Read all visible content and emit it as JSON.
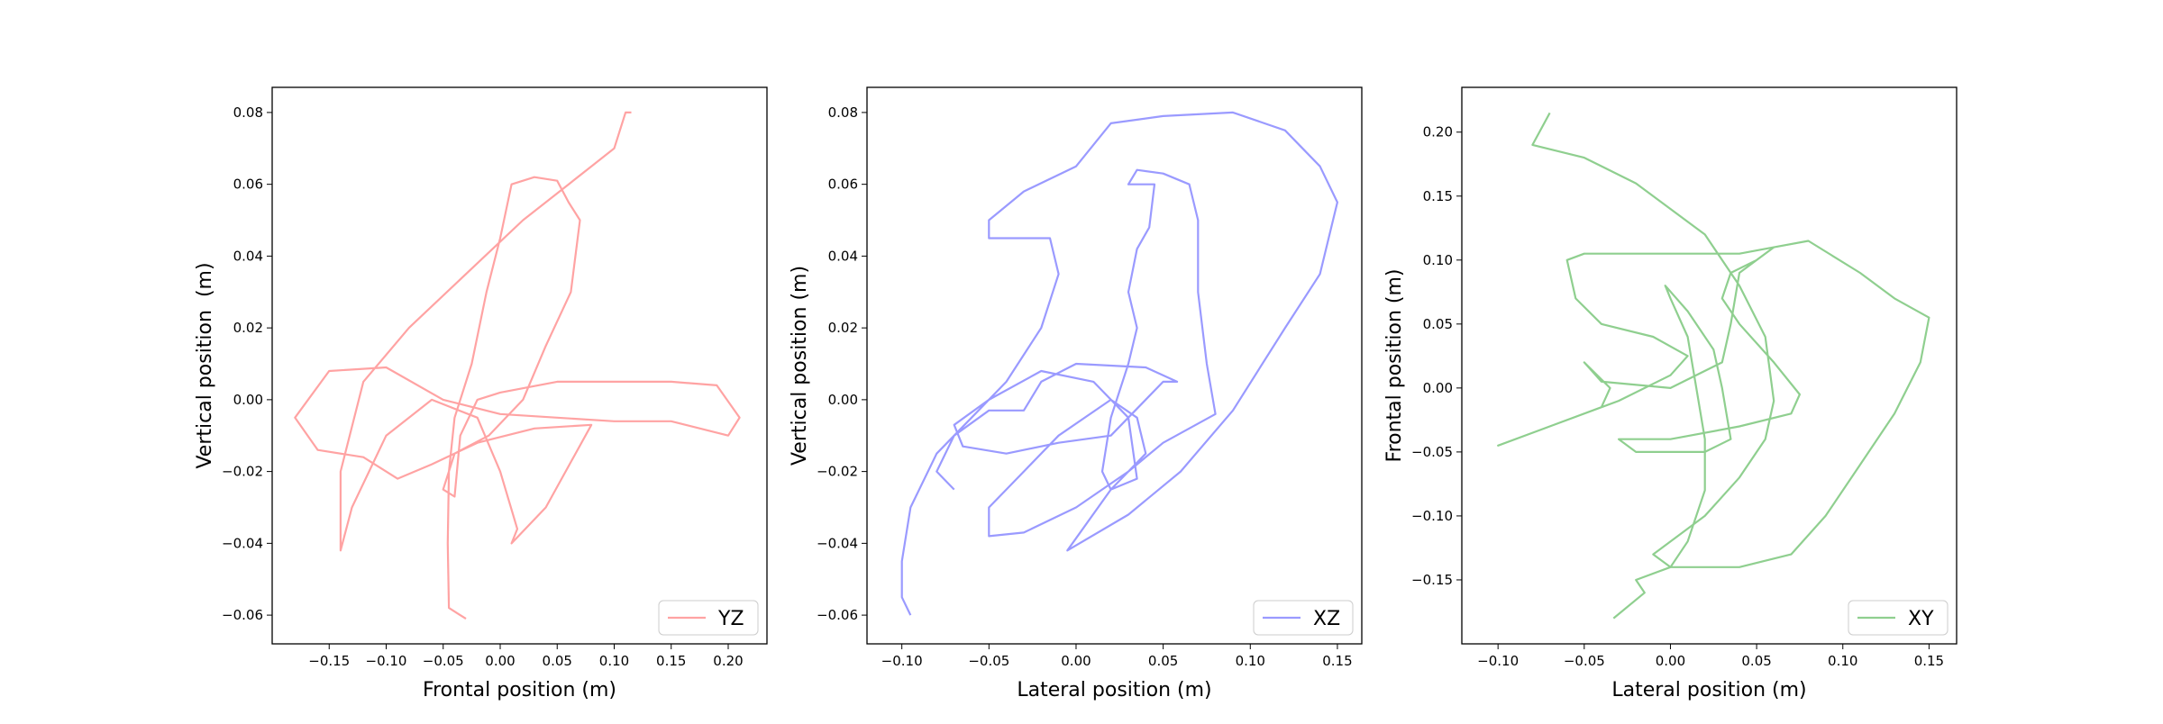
{
  "chart_data": [
    {
      "type": "line",
      "x_label": "Frontal position (m)",
      "y_label": "Vertical position  (m)",
      "xlim": [
        -0.2,
        0.234
      ],
      "ylim": [
        -0.068,
        0.087
      ],
      "xticks": [
        {
          "value": -0.15,
          "label": "−0.15"
        },
        {
          "value": -0.1,
          "label": "−0.10"
        },
        {
          "value": -0.05,
          "label": "−0.05"
        },
        {
          "value": 0,
          "label": "0.00"
        },
        0.05,
        {
          "value": 0.1,
          "label": "0.10"
        },
        0.15,
        {
          "value": 0.2,
          "label": "0.20"
        }
      ],
      "yticks": [
        {
          "value": -0.06,
          "label": "−0.06"
        },
        {
          "value": -0.04,
          "label": "−0.04"
        },
        {
          "value": -0.02,
          "label": "−0.02"
        },
        {
          "value": 0,
          "label": "0.00"
        },
        0.02,
        0.04,
        0.06,
        0.08
      ],
      "legend": "lower right",
      "series": [
        {
          "name": "YZ",
          "color": "#ffa3a3",
          "x": [
            -0.03,
            -0.045,
            -0.046,
            -0.045,
            -0.04,
            -0.025,
            -0.012,
            0.0,
            0.01,
            0.03,
            0.05,
            0.06,
            0.07,
            0.062,
            0.04,
            0.02,
            -0.01,
            -0.04,
            -0.05,
            -0.04,
            -0.035,
            -0.02,
            0.0,
            0.05,
            0.1,
            0.15,
            0.19,
            0.21,
            0.2,
            0.15,
            0.1,
            0.05,
            0.0,
            -0.05,
            -0.1,
            -0.15,
            -0.18,
            -0.16,
            -0.12,
            -0.09,
            -0.06,
            -0.02,
            0.03,
            0.08,
            0.04,
            0.01,
            0.015,
            0.0,
            -0.02,
            -0.06,
            -0.1,
            -0.13,
            -0.14,
            -0.14,
            -0.12,
            -0.08,
            -0.03,
            0.02,
            0.06,
            0.08,
            0.1,
            0.11,
            0.115
          ],
          "values": [
            -0.061,
            -0.058,
            -0.04,
            -0.02,
            -0.005,
            0.01,
            0.03,
            0.045,
            0.06,
            0.062,
            0.061,
            0.055,
            0.05,
            0.03,
            0.015,
            0.0,
            -0.01,
            -0.015,
            -0.025,
            -0.027,
            -0.01,
            0.0,
            0.002,
            0.005,
            0.005,
            0.005,
            0.004,
            -0.005,
            -0.01,
            -0.006,
            -0.006,
            -0.005,
            -0.004,
            0.0,
            0.009,
            0.008,
            -0.005,
            -0.014,
            -0.016,
            -0.022,
            -0.018,
            -0.012,
            -0.008,
            -0.007,
            -0.03,
            -0.04,
            -0.036,
            -0.02,
            -0.005,
            0.0,
            -0.01,
            -0.03,
            -0.042,
            -0.02,
            0.005,
            0.02,
            0.035,
            0.05,
            0.06,
            0.065,
            0.07,
            0.08,
            0.08
          ]
        }
      ]
    },
    {
      "type": "line",
      "x_label": "Lateral position (m)",
      "y_label": "Vertical position (m)",
      "xlim": [
        -0.12,
        0.164
      ],
      "ylim": [
        -0.068,
        0.087
      ],
      "xticks": [
        {
          "value": -0.1,
          "label": "−0.10"
        },
        {
          "value": -0.05,
          "label": "−0.05"
        },
        {
          "value": 0,
          "label": "0.00"
        },
        0.05,
        {
          "value": 0.1,
          "label": "0.10"
        },
        0.15
      ],
      "yticks": [
        {
          "value": -0.06,
          "label": "−0.06"
        },
        {
          "value": -0.04,
          "label": "−0.04"
        },
        {
          "value": -0.02,
          "label": "−0.02"
        },
        {
          "value": 0,
          "label": "0.00"
        },
        0.02,
        0.04,
        0.06,
        0.08
      ],
      "legend": "lower right",
      "series": [
        {
          "name": "XZ",
          "color": "#9a9aff",
          "x": [
            -0.095,
            -0.1,
            -0.1,
            -0.095,
            -0.08,
            -0.06,
            -0.04,
            -0.02,
            -0.01,
            -0.015,
            -0.03,
            -0.05,
            -0.05,
            -0.03,
            0.0,
            0.02,
            0.05,
            0.09,
            0.12,
            0.14,
            0.15,
            0.14,
            0.12,
            0.09,
            0.06,
            0.03,
            -0.005,
            0.02,
            0.04,
            0.035,
            0.02,
            -0.01,
            -0.03,
            -0.05,
            -0.05,
            -0.03,
            0.0,
            0.03,
            0.05,
            0.08,
            0.075,
            0.07,
            0.07,
            0.065,
            0.05,
            0.035,
            0.03,
            0.035,
            0.045,
            0.042,
            0.035,
            0.03,
            0.035,
            0.03,
            0.02,
            0.015,
            0.02,
            0.035,
            0.03,
            0.01,
            -0.02,
            -0.05,
            -0.07,
            -0.065,
            -0.04,
            -0.01,
            0.02,
            0.05,
            0.058,
            0.04,
            0.0,
            -0.02,
            -0.03,
            -0.05,
            -0.07,
            -0.08,
            -0.07
          ],
          "values": [
            -0.06,
            -0.055,
            -0.045,
            -0.03,
            -0.015,
            -0.005,
            0.005,
            0.02,
            0.035,
            0.045,
            0.045,
            0.045,
            0.05,
            0.058,
            0.065,
            0.077,
            0.079,
            0.08,
            0.075,
            0.065,
            0.055,
            0.035,
            0.02,
            -0.003,
            -0.02,
            -0.032,
            -0.042,
            -0.025,
            -0.015,
            -0.005,
            0.0,
            -0.01,
            -0.02,
            -0.03,
            -0.038,
            -0.037,
            -0.03,
            -0.02,
            -0.012,
            -0.004,
            0.01,
            0.03,
            0.05,
            0.06,
            0.063,
            0.064,
            0.06,
            0.06,
            0.06,
            0.048,
            0.042,
            0.03,
            0.02,
            0.01,
            -0.005,
            -0.02,
            -0.025,
            -0.022,
            -0.005,
            0.005,
            0.008,
            0.0,
            -0.007,
            -0.013,
            -0.015,
            -0.012,
            -0.01,
            0.005,
            0.005,
            0.009,
            0.01,
            0.005,
            -0.003,
            -0.003,
            -0.01,
            -0.02,
            -0.025
          ]
        }
      ]
    },
    {
      "type": "line",
      "x_label": "Lateral position (m)",
      "y_label": "Frontal position (m)",
      "xlim": [
        -0.121,
        0.166
      ],
      "ylim": [
        -0.2,
        0.235
      ],
      "xticks": [
        {
          "value": -0.1,
          "label": "−0.10"
        },
        {
          "value": -0.05,
          "label": "−0.05"
        },
        {
          "value": 0,
          "label": "0.00"
        },
        0.05,
        {
          "value": 0.1,
          "label": "0.10"
        },
        0.15
      ],
      "yticks": [
        {
          "value": -0.15,
          "label": "−0.15"
        },
        {
          "value": -0.1,
          "label": "−0.10"
        },
        {
          "value": -0.05,
          "label": "−0.05"
        },
        {
          "value": 0,
          "label": "0.00"
        },
        0.05,
        {
          "value": 0.1,
          "label": "0.10"
        },
        0.15,
        {
          "value": 0.2,
          "label": "0.20"
        }
      ],
      "legend": "lower right",
      "series": [
        {
          "name": "XY",
          "color": "#8fcf8f",
          "x": [
            -0.033,
            -0.015,
            -0.02,
            0.0,
            0.01,
            0.02,
            0.02,
            0.015,
            0.01,
            0.0,
            -0.003,
            0.01,
            0.025,
            0.03,
            0.035,
            0.02,
            -0.02,
            -0.03,
            0.0,
            0.04,
            0.07,
            0.075,
            0.06,
            0.04,
            0.03,
            0.035,
            0.05,
            0.06,
            0.04,
            0.0,
            -0.05,
            -0.06,
            -0.055,
            -0.04,
            -0.01,
            0.01,
            0.0,
            -0.03,
            -0.07,
            -0.1,
            -0.08,
            -0.06,
            -0.04,
            -0.035,
            -0.05,
            -0.04,
            0.0,
            0.03,
            0.035,
            0.04,
            0.06,
            0.08,
            0.11,
            0.13,
            0.15,
            0.145,
            0.13,
            0.11,
            0.09,
            0.07,
            0.04,
            0.0,
            -0.01,
            0.02,
            0.04,
            0.055,
            0.06,
            0.055,
            0.04,
            0.02,
            -0.02,
            -0.05,
            -0.08,
            -0.07
          ],
          "values": [
            -0.18,
            -0.16,
            -0.15,
            -0.14,
            -0.12,
            -0.08,
            -0.04,
            0.0,
            0.04,
            0.07,
            0.08,
            0.06,
            0.03,
            0.0,
            -0.04,
            -0.05,
            -0.05,
            -0.04,
            -0.04,
            -0.03,
            -0.02,
            -0.005,
            0.02,
            0.05,
            0.07,
            0.09,
            0.1,
            0.11,
            0.105,
            0.105,
            0.105,
            0.1,
            0.07,
            0.05,
            0.04,
            0.025,
            0.01,
            -0.01,
            -0.03,
            -0.045,
            -0.035,
            -0.025,
            -0.015,
            0.0,
            0.02,
            0.005,
            0.0,
            0.02,
            0.05,
            0.09,
            0.11,
            0.115,
            0.09,
            0.07,
            0.055,
            0.02,
            -0.02,
            -0.06,
            -0.1,
            -0.13,
            -0.14,
            -0.14,
            -0.13,
            -0.1,
            -0.07,
            -0.04,
            -0.01,
            0.04,
            0.08,
            0.12,
            0.16,
            0.18,
            0.19,
            0.215
          ]
        }
      ]
    }
  ]
}
